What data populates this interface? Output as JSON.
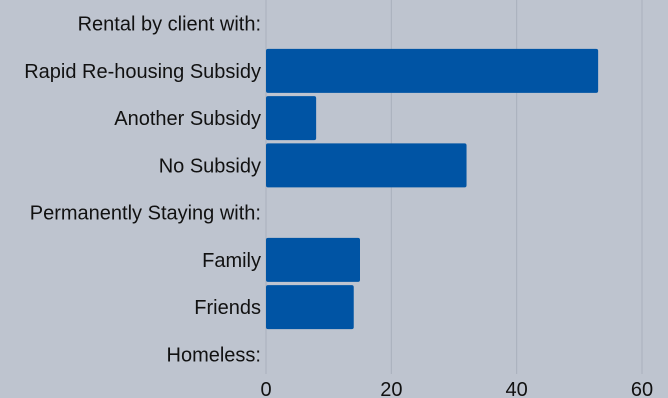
{
  "chart_data": {
    "type": "bar",
    "orientation": "horizontal",
    "categories": [
      "Rental by client with:",
      "Rapid Re-housing Subsidy",
      "Another Subsidy",
      "No Subsidy",
      "Permanently Staying with:",
      "Family",
      "Friends",
      "Homeless:"
    ],
    "values": [
      null,
      53,
      8,
      32,
      null,
      15,
      14,
      null
    ],
    "xlim": [
      0,
      60
    ],
    "xticks": [
      0,
      20,
      40,
      60
    ],
    "grid": true,
    "bar_color": "#0054a4",
    "background_color": "#bec4cf",
    "grid_color": "#a9b0bc",
    "title": "",
    "xlabel": "",
    "ylabel": ""
  }
}
